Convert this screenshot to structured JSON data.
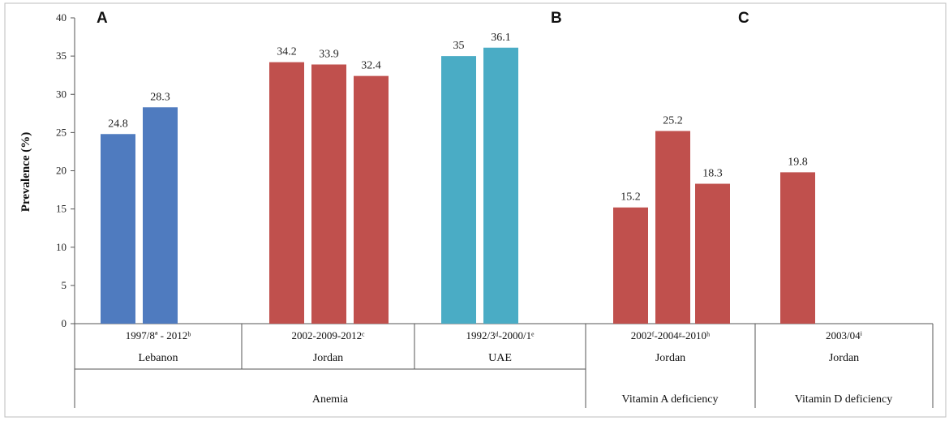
{
  "chart_data": {
    "type": "bar",
    "title": "",
    "ylabel": "Prevalence (%)",
    "ylim": [
      0,
      40
    ],
    "yticks": [
      0,
      5,
      10,
      15,
      20,
      25,
      30,
      35,
      40
    ],
    "grid": false,
    "panels": [
      "A",
      "B",
      "C"
    ],
    "groups": [
      {
        "panel": "A",
        "indicator": "Anemia",
        "country": "Lebanon",
        "period": "1997/8ª - 2012ᵇ",
        "color": "#4f7bbf",
        "values": [
          24.8,
          28.3
        ]
      },
      {
        "panel": "A",
        "indicator": "Anemia",
        "country": "Jordan",
        "period": "2002-2009-2012ᶜ",
        "color": "#c0504d",
        "values": [
          34.2,
          33.9,
          32.4
        ]
      },
      {
        "panel": "A",
        "indicator": "Anemia",
        "country": "UAE",
        "period": "1992/3ᵈ-2000/1ᵉ",
        "color": "#4aacc5",
        "values": [
          35,
          36.1
        ]
      },
      {
        "panel": "B",
        "indicator": "Vitamin A deficiency",
        "country": "Jordan",
        "period": "2002ᶠ-2004ᵍ-2010ʰ",
        "color": "#c0504d",
        "values": [
          15.2,
          25.2,
          18.3
        ]
      },
      {
        "panel": "C",
        "indicator": "Vitamin D deficiency",
        "country": "Jordan",
        "period": "2003/04ⁱ",
        "color": "#c0504d",
        "values": [
          19.8
        ]
      }
    ],
    "indicators": [
      "Anemia",
      "Vitamin A deficiency",
      "Vitamin D deficiency"
    ]
  }
}
